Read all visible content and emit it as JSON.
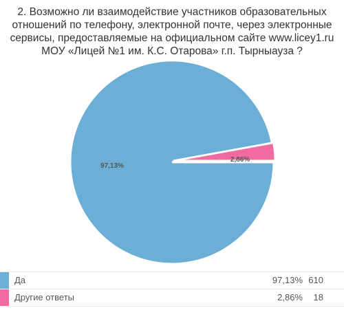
{
  "title_lines": [
    "2. Возможно ли взаимодействие участников образовательных",
    "отношений по телефону, электронной почте, через электронные",
    "сервисы, предоставляемые на официальном сайте  www.licey1.ru",
    "МОУ «Лицей №1 им. К.С. Отарова» г.п. Тырныауза ?"
  ],
  "chart_data": {
    "type": "pie",
    "slices": [
      {
        "label": "Да",
        "percent": 97.13,
        "percent_label": "97,13%",
        "legend_percent": "97,13%",
        "count": 610,
        "color": "#6baed6"
      },
      {
        "label": "Другие ответы",
        "percent": 2.86,
        "percent_label": "2,86%",
        "legend_percent": "2,86%",
        "count": 18,
        "color": "#f06b9f"
      }
    ],
    "legend_placement": "bottom"
  }
}
